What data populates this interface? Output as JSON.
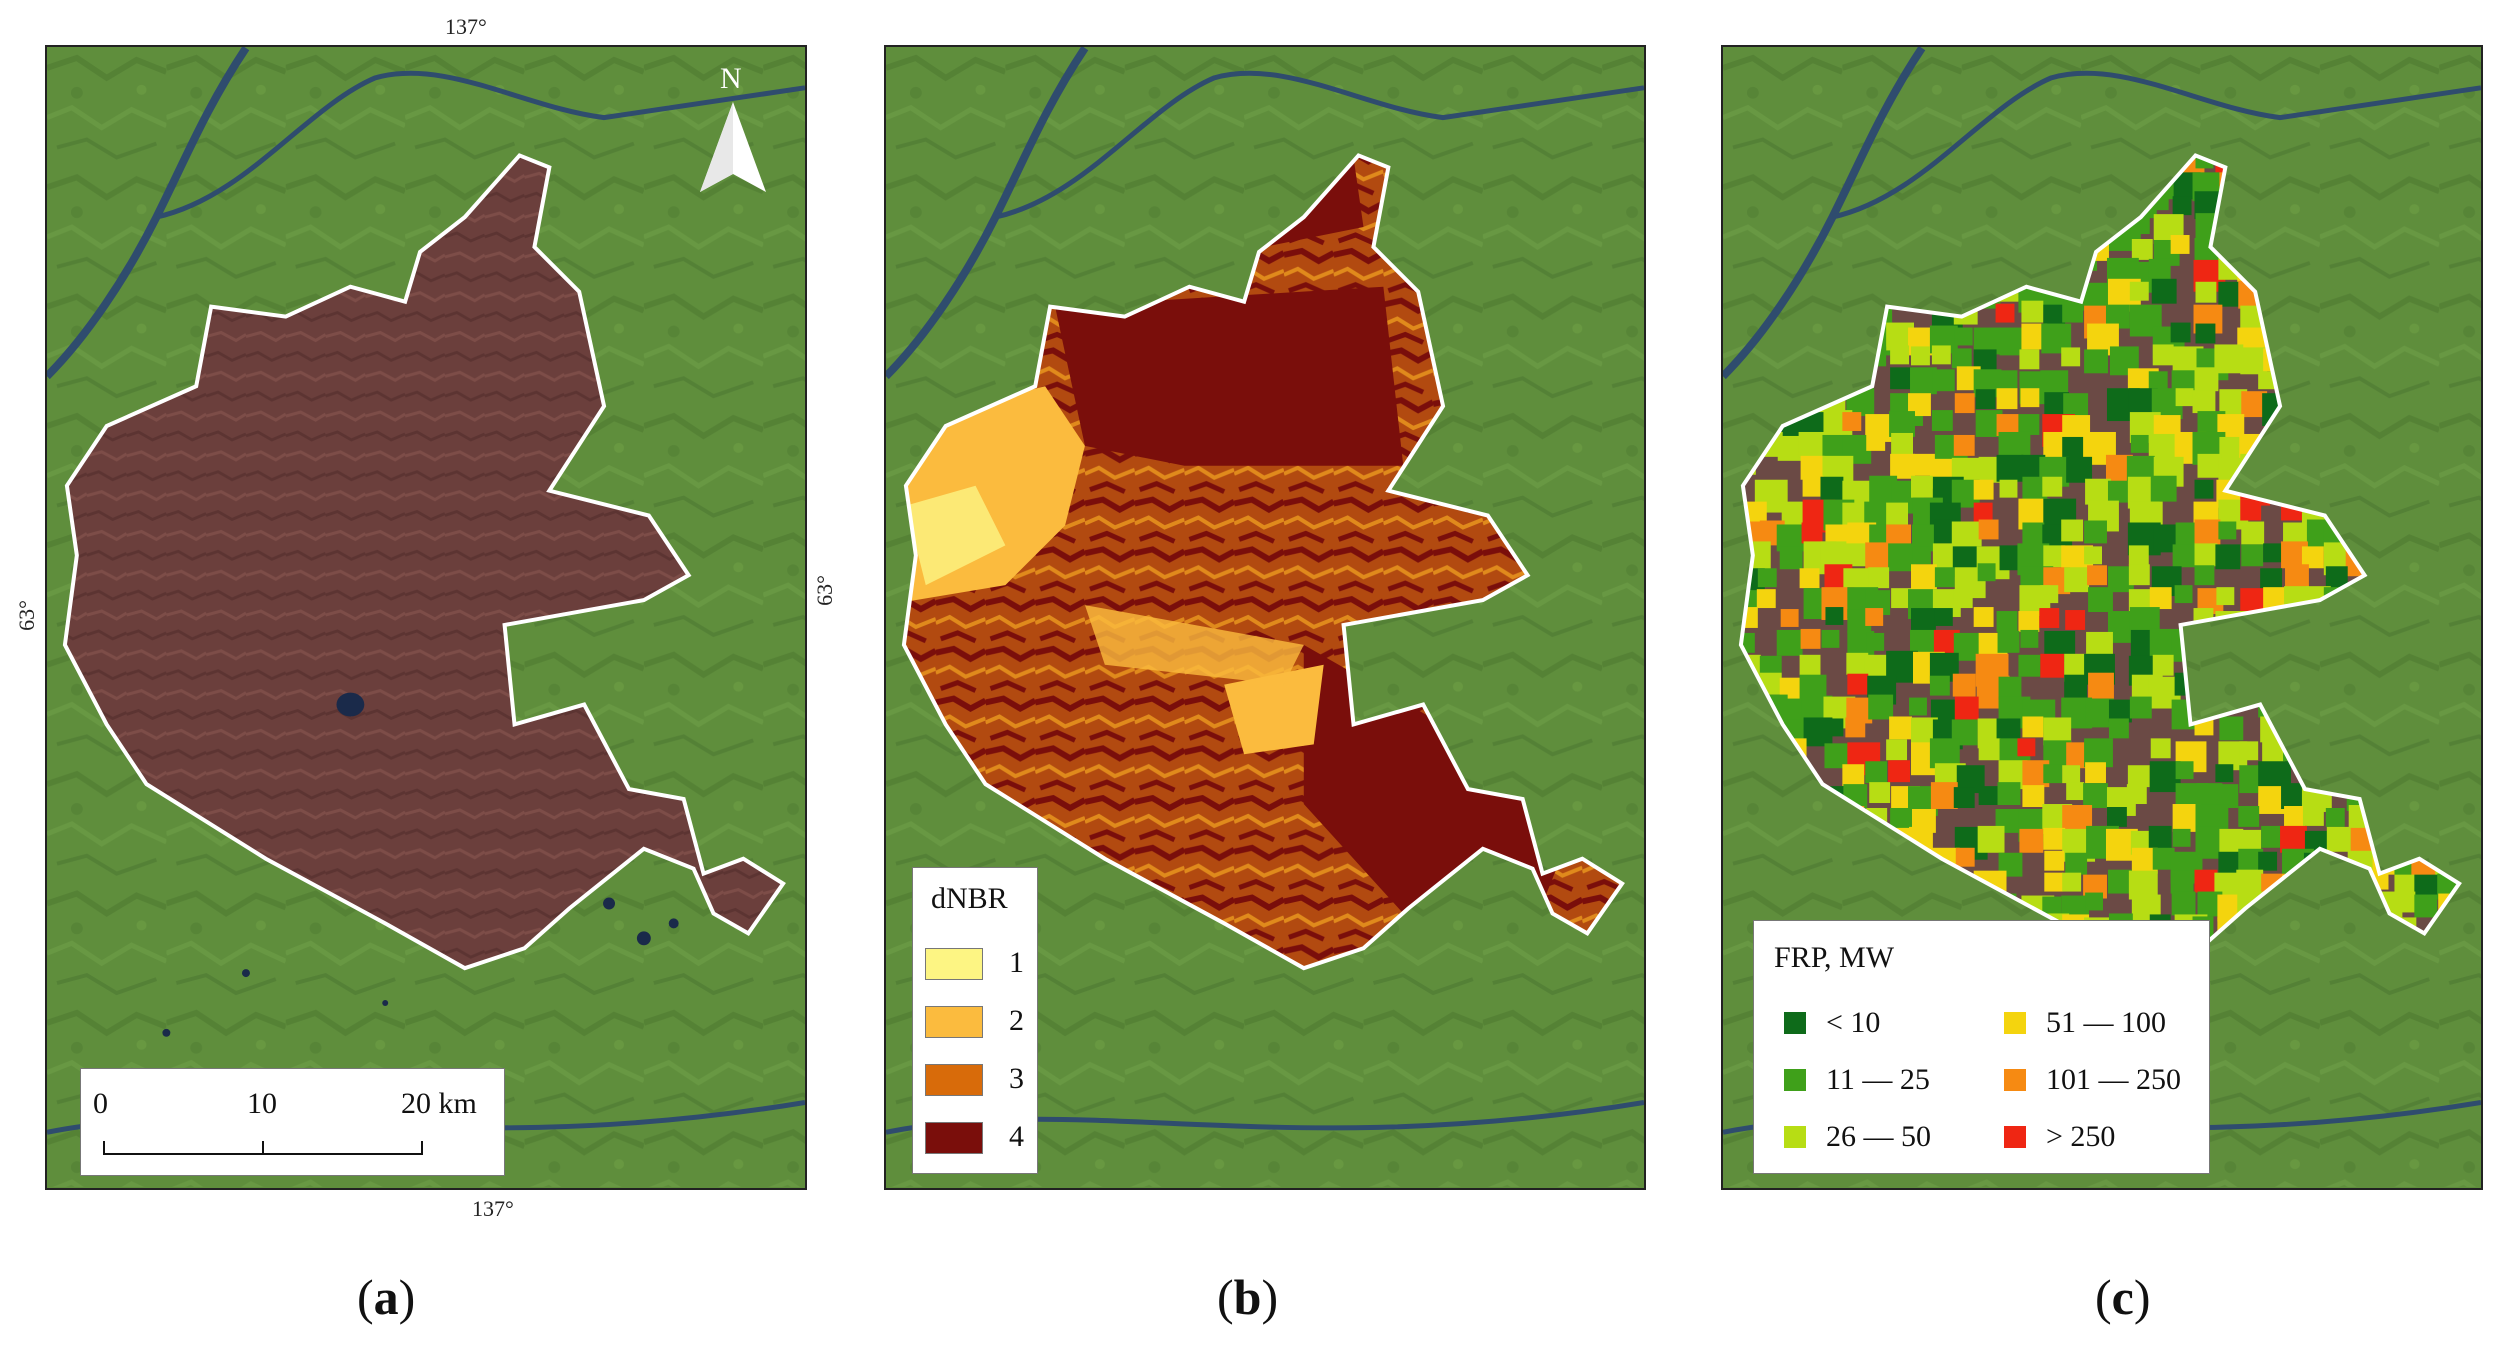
{
  "panels": {
    "a": {
      "caption_open": "(",
      "caption_letter": "a",
      "caption_close": ")"
    },
    "b": {
      "caption_open": "(",
      "caption_letter": "b",
      "caption_close": ")"
    },
    "c": {
      "caption_open": "(",
      "caption_letter": "c",
      "caption_close": ")"
    }
  },
  "coords": {
    "top_lon": "137°",
    "bottom_lon": "137°",
    "left_lat": "63°",
    "mid_lat": "63°"
  },
  "north_arrow": {
    "label": "N"
  },
  "scalebar": {
    "labels": [
      "0",
      "10",
      "20 km"
    ]
  },
  "legend_dnbr": {
    "title": "dNBR",
    "classes": [
      {
        "label": "1",
        "color": "#fdf583"
      },
      {
        "label": "2",
        "color": "#fbbb3e"
      },
      {
        "label": "3",
        "color": "#d86b0a"
      },
      {
        "label": "4",
        "color": "#7a0e0b"
      }
    ]
  },
  "legend_frp": {
    "title": "FRP, MW",
    "classes": [
      {
        "label": "< 10",
        "color": "#0e6b1a"
      },
      {
        "label": "11 — 25",
        "color": "#3fa01a"
      },
      {
        "label": "26 — 50",
        "color": "#b7dd14"
      },
      {
        "label": "51 — 100",
        "color": "#f4d40e"
      },
      {
        "label": "101 — 250",
        "color": "#f68a12"
      },
      {
        "label": "> 250",
        "color": "#ef2613"
      }
    ]
  },
  "colors": {
    "background_green": "#5f8e3c",
    "burn_scar": "#6b3f3c",
    "river": "#2f4c6e",
    "outline": "#ffffff"
  }
}
